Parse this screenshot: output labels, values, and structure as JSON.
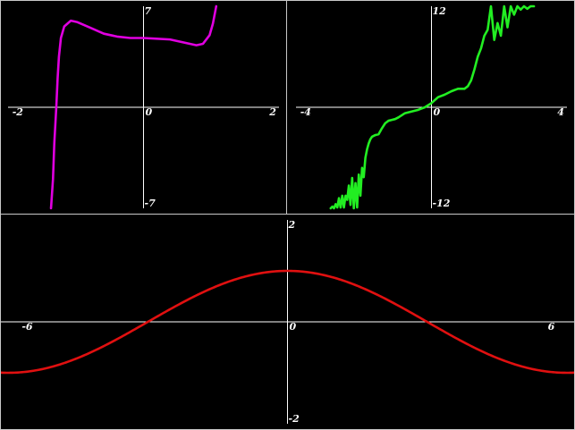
{
  "colors": {
    "background": "#000000",
    "axis": "#ffffff",
    "border": "#c8c8c8"
  },
  "chart_data": [
    {
      "type": "line",
      "series": [
        {
          "color": "#e000e0",
          "x": [
            -1.4,
            -1.37,
            -1.35,
            -1.32,
            -1.3,
            -1.28,
            -1.25,
            -1.2,
            -1.1,
            -1.0,
            -0.8,
            -0.6,
            -0.4,
            -0.2,
            0.0,
            0.2,
            0.4,
            0.6,
            0.8,
            0.9,
            1.0,
            1.05,
            1.1
          ],
          "y": [
            -7.0,
            -5.0,
            -2.5,
            0.0,
            2.0,
            3.5,
            4.8,
            5.6,
            6.0,
            5.9,
            5.5,
            5.1,
            4.9,
            4.8,
            4.8,
            4.75,
            4.7,
            4.5,
            4.3,
            4.4,
            5.0,
            5.8,
            7.0
          ]
        }
      ],
      "xlim": [
        -2.05,
        2.05
      ],
      "ylim": [
        -7.0,
        7.0
      ],
      "xticks": [
        -2,
        0,
        2
      ],
      "yticks": [
        7,
        -7
      ],
      "origin_label": "0"
    },
    {
      "type": "line",
      "series": [
        {
          "color": "#22ee22",
          "x": [
            -3.05,
            -3.0,
            -2.95,
            -2.9,
            -2.85,
            -2.8,
            -2.75,
            -2.7,
            -2.65,
            -2.6,
            -2.55,
            -2.5,
            -2.45,
            -2.4,
            -2.35,
            -2.3,
            -2.25,
            -2.2,
            -2.15,
            -2.1,
            -2.05,
            -2.0,
            -1.95,
            -1.9,
            -1.85,
            -1.8,
            -1.7,
            -1.6,
            -1.5,
            -1.4,
            -1.3,
            -1.2,
            -1.1,
            -1.0,
            -0.8,
            -0.6,
            -0.4,
            -0.2,
            0.0,
            0.2,
            0.4,
            0.6,
            0.8,
            1.0,
            1.1,
            1.2,
            1.3,
            1.4,
            1.5,
            1.6,
            1.7,
            1.8,
            1.9,
            2.0,
            2.1,
            2.2,
            2.3,
            2.4,
            2.5,
            2.6,
            2.7,
            2.8,
            2.9,
            3.0,
            3.1
          ],
          "y": [
            -12.0,
            -11.8,
            -12.0,
            -11.5,
            -11.9,
            -10.8,
            -11.9,
            -10.5,
            -11.9,
            -10.5,
            -11.0,
            -9.3,
            -11.6,
            -8.4,
            -12.0,
            -9.0,
            -11.9,
            -8.0,
            -10.5,
            -7.2,
            -8.3,
            -6.0,
            -5.0,
            -4.3,
            -3.8,
            -3.5,
            -3.3,
            -3.2,
            -2.5,
            -1.9,
            -1.6,
            -1.5,
            -1.4,
            -1.2,
            -0.7,
            -0.5,
            -0.3,
            0.0,
            0.5,
            1.2,
            1.5,
            1.9,
            2.2,
            2.2,
            2.5,
            3.2,
            4.5,
            6.0,
            7.0,
            8.5,
            9.2,
            12.0,
            8.0,
            10.0,
            8.5,
            12.0,
            9.5,
            12.0,
            11.0,
            12.0,
            11.6,
            12.0,
            11.7,
            12.0,
            12.0
          ]
        }
      ],
      "xlim": [
        -4.1,
        4.1
      ],
      "ylim": [
        -12.0,
        12.0
      ],
      "xticks": [
        -4,
        0,
        4
      ],
      "yticks": [
        12,
        -12
      ],
      "origin_label": "0"
    },
    {
      "type": "line",
      "series": [
        {
          "color": "#e01010",
          "function": "cos(x/2)",
          "x_range": [
            -6.45,
            6.45
          ]
        }
      ],
      "xlim": [
        -6.45,
        6.45
      ],
      "ylim": [
        -2.0,
        2.0
      ],
      "xticks": [
        -6,
        0,
        6
      ],
      "yticks": [
        2,
        -2
      ],
      "origin_label": "0"
    }
  ]
}
